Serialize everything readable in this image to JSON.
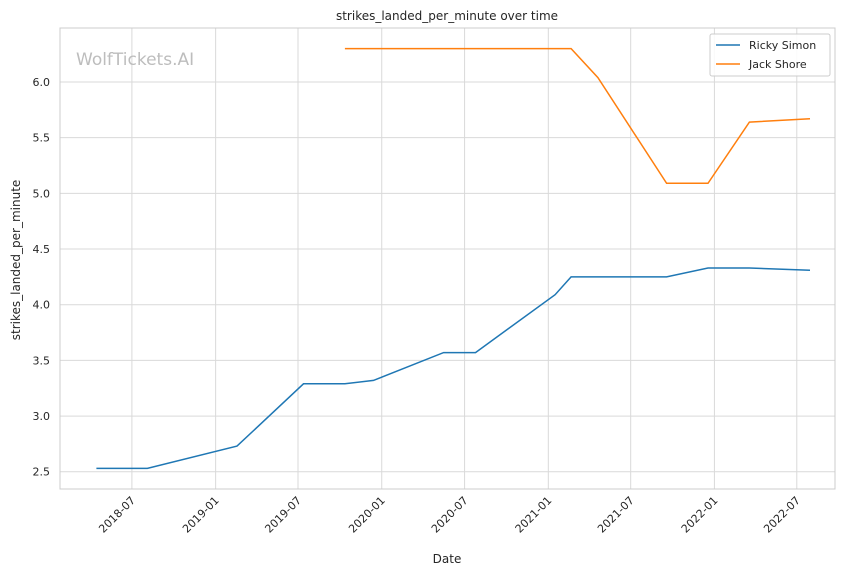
{
  "chart_data": {
    "type": "line",
    "title": "strikes_landed_per_minute over time",
    "xlabel": "Date",
    "ylabel": "strikes_landed_per_minute",
    "watermark": "WolfTickets.AI",
    "x_ticks": [
      "2018-07",
      "2019-01",
      "2019-07",
      "2020-01",
      "2020-07",
      "2021-01",
      "2021-07",
      "2022-01",
      "2022-07"
    ],
    "y_ticks": [
      2.5,
      3.0,
      3.5,
      4.0,
      4.5,
      5.0,
      5.5,
      6.0
    ],
    "xlim": [
      "2018-01-24",
      "2022-09-23"
    ],
    "ylim": [
      2.345,
      6.485
    ],
    "grid": true,
    "legend": "top-right",
    "series": [
      {
        "name": "Ricky Simon",
        "color": "#1f77b4",
        "points": [
          {
            "x": "2018-04-14",
            "y": 2.53
          },
          {
            "x": "2018-08-04",
            "y": 2.53
          },
          {
            "x": "2019-02-17",
            "y": 2.73
          },
          {
            "x": "2019-07-13",
            "y": 3.29
          },
          {
            "x": "2019-10-12",
            "y": 3.29
          },
          {
            "x": "2019-12-14",
            "y": 3.32
          },
          {
            "x": "2020-05-16",
            "y": 3.57
          },
          {
            "x": "2020-07-25",
            "y": 3.57
          },
          {
            "x": "2021-01-16",
            "y": 4.09
          },
          {
            "x": "2021-02-20",
            "y": 4.25
          },
          {
            "x": "2021-09-18",
            "y": 4.25
          },
          {
            "x": "2021-12-18",
            "y": 4.33
          },
          {
            "x": "2022-03-19",
            "y": 4.33
          },
          {
            "x": "2022-07-30",
            "y": 4.31
          }
        ]
      },
      {
        "name": "Jack Shore",
        "color": "#ff7f0e",
        "points": [
          {
            "x": "2019-10-12",
            "y": 6.3
          },
          {
            "x": "2021-02-20",
            "y": 6.3
          },
          {
            "x": "2021-04-20",
            "y": 6.04
          },
          {
            "x": "2021-09-18",
            "y": 5.09
          },
          {
            "x": "2021-12-18",
            "y": 5.09
          },
          {
            "x": "2022-03-19",
            "y": 5.64
          },
          {
            "x": "2022-07-30",
            "y": 5.67
          }
        ]
      }
    ]
  }
}
